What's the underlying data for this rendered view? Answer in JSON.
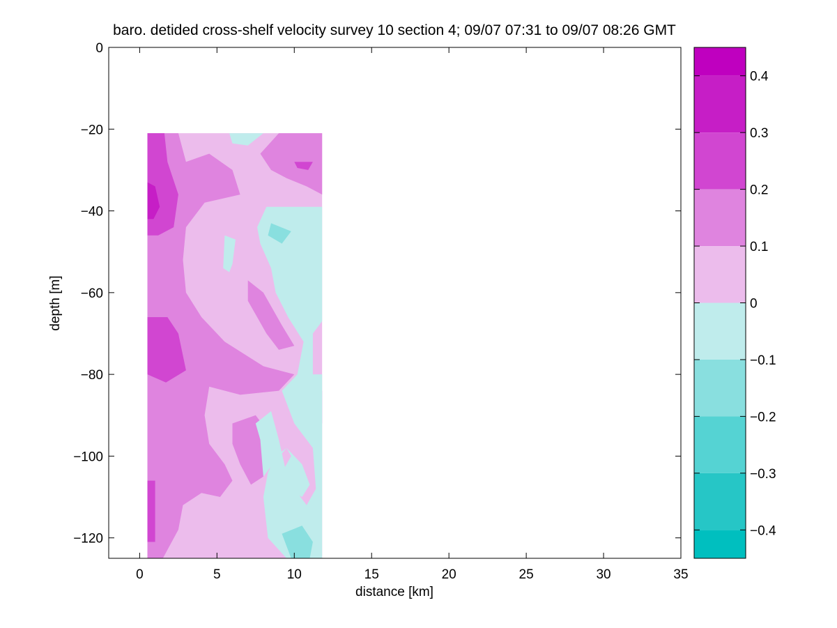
{
  "chart_data": {
    "type": "heatmap",
    "title": "baro. detided cross-shelf velocity survey 10 section 4; 09/07 07:31 to 09/07 08:26 GMT",
    "xlabel": "distance [km]",
    "ylabel": "depth [m]",
    "xlim": [
      -2,
      35
    ],
    "ylim": [
      -125,
      0
    ],
    "xticks": [
      0,
      5,
      10,
      15,
      20,
      25,
      30,
      35
    ],
    "yticks": [
      0,
      -20,
      -40,
      -60,
      -80,
      -100,
      -120
    ],
    "grid": false,
    "data_extent": {
      "x": [
        0.5,
        11.8
      ],
      "y": [
        -125,
        -21
      ]
    },
    "colorbar": {
      "ticks": [
        0.4,
        0.3,
        0.2,
        0.1,
        0,
        -0.1,
        -0.2,
        -0.3,
        -0.4
      ],
      "range": [
        -0.45,
        0.45
      ],
      "levels": [
        {
          "min": 0.4,
          "max": 0.45,
          "color": "#bf00bf"
        },
        {
          "min": 0.3,
          "max": 0.4,
          "color": "#c61ec6"
        },
        {
          "min": 0.2,
          "max": 0.3,
          "color": "#d146d1"
        },
        {
          "min": 0.1,
          "max": 0.2,
          "color": "#df84df"
        },
        {
          "min": 0.0,
          "max": 0.1,
          "color": "#ecbcec"
        },
        {
          "min": -0.1,
          "max": 0.0,
          "color": "#bfecec"
        },
        {
          "min": -0.2,
          "max": -0.1,
          "color": "#89dfdf"
        },
        {
          "min": -0.3,
          "max": -0.2,
          "color": "#55d3d3"
        },
        {
          "min": -0.4,
          "max": -0.3,
          "color": "#26c6c6"
        },
        {
          "min": -0.45,
          "max": -0.4,
          "color": "#00bfbf"
        }
      ]
    },
    "regions": [
      {
        "level": 0.05,
        "points": [
          [
            0.5,
            -21
          ],
          [
            11.8,
            -21
          ],
          [
            11.8,
            -125
          ],
          [
            0.5,
            -125
          ]
        ]
      },
      {
        "level": 0.15,
        "points": [
          [
            0.5,
            -21
          ],
          [
            2.5,
            -21
          ],
          [
            3.0,
            -28
          ],
          [
            4.5,
            -26
          ],
          [
            6.0,
            -30
          ],
          [
            6.5,
            -36
          ],
          [
            4.2,
            -38
          ],
          [
            3.0,
            -44
          ],
          [
            2.8,
            -52
          ],
          [
            3.0,
            -60
          ],
          [
            4.0,
            -66
          ],
          [
            5.5,
            -72
          ],
          [
            8.0,
            -78
          ],
          [
            10.0,
            -80
          ],
          [
            9.0,
            -84
          ],
          [
            6.5,
            -85
          ],
          [
            4.5,
            -83
          ],
          [
            4.2,
            -90
          ],
          [
            4.5,
            -97
          ],
          [
            5.5,
            -102
          ],
          [
            6.0,
            -106
          ],
          [
            5.2,
            -110
          ],
          [
            4.0,
            -109
          ],
          [
            2.8,
            -112
          ],
          [
            2.5,
            -118
          ],
          [
            1.5,
            -125
          ],
          [
            0.5,
            -125
          ]
        ]
      },
      {
        "level": 0.15,
        "points": [
          [
            9.0,
            -21
          ],
          [
            11.8,
            -21
          ],
          [
            11.8,
            -36
          ],
          [
            10.8,
            -34
          ],
          [
            9.5,
            -32
          ],
          [
            8.5,
            -30
          ],
          [
            7.8,
            -26
          ]
        ]
      },
      {
        "level": 0.15,
        "points": [
          [
            7.0,
            -57
          ],
          [
            8.0,
            -60
          ],
          [
            9.2,
            -68
          ],
          [
            10.0,
            -73
          ],
          [
            9.0,
            -74
          ],
          [
            8.2,
            -70
          ],
          [
            7.6,
            -66
          ],
          [
            7.0,
            -62
          ]
        ]
      },
      {
        "level": 0.15,
        "points": [
          [
            6.0,
            -92
          ],
          [
            7.5,
            -90
          ],
          [
            8.3,
            -94
          ],
          [
            8.5,
            -100
          ],
          [
            8.0,
            -105
          ],
          [
            7.2,
            -107
          ],
          [
            6.5,
            -102
          ],
          [
            6.0,
            -97
          ]
        ]
      },
      {
        "level": 0.15,
        "points": [
          [
            11.0,
            -84
          ],
          [
            11.8,
            -84
          ],
          [
            11.8,
            -92
          ],
          [
            11.2,
            -89
          ]
        ]
      },
      {
        "level": 0.15,
        "points": [
          [
            9.8,
            -86
          ],
          [
            10.5,
            -86
          ],
          [
            11.0,
            -92
          ],
          [
            10.4,
            -93
          ]
        ]
      },
      {
        "level": 0.25,
        "points": [
          [
            0.5,
            -21
          ],
          [
            1.6,
            -21
          ],
          [
            1.8,
            -28
          ],
          [
            2.5,
            -36
          ],
          [
            2.2,
            -44
          ],
          [
            1.2,
            -46
          ],
          [
            0.5,
            -46
          ]
        ]
      },
      {
        "level": 0.25,
        "points": [
          [
            0.5,
            -66
          ],
          [
            1.8,
            -66
          ],
          [
            2.5,
            -70
          ],
          [
            3.0,
            -79
          ],
          [
            1.7,
            -82
          ],
          [
            0.5,
            -80
          ]
        ]
      },
      {
        "level": 0.25,
        "points": [
          [
            0.5,
            -106
          ],
          [
            1.0,
            -106
          ],
          [
            1.0,
            -121
          ],
          [
            0.5,
            -121
          ]
        ]
      },
      {
        "level": 0.25,
        "points": [
          [
            10.0,
            -28
          ],
          [
            11.2,
            -28
          ],
          [
            10.9,
            -30
          ],
          [
            10.2,
            -29.5
          ]
        ]
      },
      {
        "level": 0.35,
        "points": [
          [
            0.5,
            -33
          ],
          [
            1.0,
            -34
          ],
          [
            1.3,
            -39
          ],
          [
            0.9,
            -42
          ],
          [
            0.5,
            -42
          ]
        ]
      },
      {
        "level": -0.05,
        "points": [
          [
            5.8,
            -21
          ],
          [
            8.0,
            -21
          ],
          [
            7.0,
            -24
          ],
          [
            6.0,
            -23.5
          ]
        ]
      },
      {
        "level": -0.05,
        "points": [
          [
            8.2,
            -39
          ],
          [
            11.8,
            -39
          ],
          [
            11.8,
            -67
          ],
          [
            11.2,
            -70
          ],
          [
            11.2,
            -80
          ],
          [
            11.8,
            -80
          ],
          [
            11.8,
            -125
          ],
          [
            9.5,
            -125
          ],
          [
            8.3,
            -120
          ],
          [
            8.0,
            -110
          ],
          [
            8.3,
            -104
          ],
          [
            8.8,
            -100
          ],
          [
            9.5,
            -98
          ],
          [
            10.5,
            -102
          ],
          [
            11.0,
            -107
          ],
          [
            10.5,
            -110
          ],
          [
            9.5,
            -108
          ],
          [
            9.2,
            -104
          ],
          [
            9.8,
            -100
          ],
          [
            9.5,
            -98
          ],
          [
            8.6,
            -102
          ],
          [
            8.0,
            -105
          ],
          [
            7.8,
            -96
          ],
          [
            7.5,
            -92
          ],
          [
            8.5,
            -89
          ],
          [
            9.0,
            -96
          ],
          [
            9.6,
            -106
          ],
          [
            10.8,
            -112
          ],
          [
            11.4,
            -108
          ],
          [
            11.2,
            -98
          ],
          [
            10.0,
            -92
          ],
          [
            9.2,
            -84
          ],
          [
            10.2,
            -80
          ],
          [
            10.6,
            -72
          ],
          [
            9.6,
            -66
          ],
          [
            8.8,
            -60
          ],
          [
            8.5,
            -54
          ],
          [
            7.8,
            -48
          ],
          [
            7.6,
            -44
          ]
        ]
      },
      {
        "level": -0.05,
        "points": [
          [
            5.5,
            -46
          ],
          [
            6.2,
            -47
          ],
          [
            6.0,
            -53
          ],
          [
            5.8,
            -55
          ],
          [
            5.4,
            -54
          ]
        ]
      },
      {
        "level": -0.15,
        "points": [
          [
            8.5,
            -43
          ],
          [
            9.8,
            -45
          ],
          [
            9.2,
            -48
          ],
          [
            8.3,
            -46
          ]
        ]
      },
      {
        "level": -0.15,
        "points": [
          [
            9.2,
            -119
          ],
          [
            10.5,
            -117
          ],
          [
            11.2,
            -121
          ],
          [
            11.0,
            -125
          ],
          [
            9.8,
            -125
          ]
        ]
      }
    ]
  }
}
